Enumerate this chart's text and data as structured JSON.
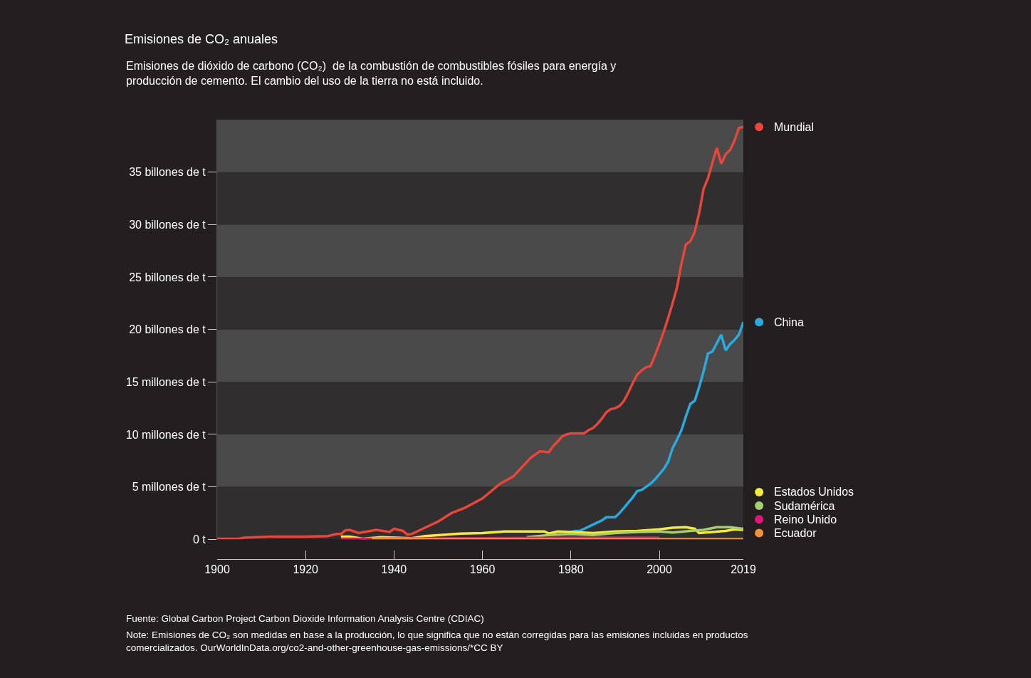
{
  "chart_data": {
    "type": "line",
    "title": "Emisiones de CO₂ anuales",
    "subtitle": "Emisiones de dióxido de carbono (CO₂)  de la combustión de combustibles fósiles para energía y producción de cemento. El cambio del uso de la tierra no está incluido.",
    "xlim": [
      1900,
      2019
    ],
    "xticks": [
      1900,
      1920,
      1940,
      1960,
      1980,
      2000,
      2019
    ],
    "ylim": [
      0,
      40
    ],
    "yticks": [
      {
        "value": 0,
        "label": "0 t"
      },
      {
        "value": 5,
        "label": "5 millones de t"
      },
      {
        "value": 10,
        "label": "10 millones de t"
      },
      {
        "value": 15,
        "label": "15 millones de t"
      },
      {
        "value": 20,
        "label": "20 billones de t"
      },
      {
        "value": 25,
        "label": "25 billones de t"
      },
      {
        "value": 30,
        "label": "30 billones de t"
      },
      {
        "value": 35,
        "label": "35 billones de t"
      }
    ],
    "grid": false,
    "legend": "right",
    "marker": "none",
    "line_style": "solid",
    "series": [
      {
        "name": "Mundial",
        "color": "#e8463b",
        "x": [
          1900,
          1905,
          1906,
          1912,
          1920,
          1925,
          1927,
          1928,
          1929,
          1930,
          1932,
          1934,
          1936,
          1939,
          1940,
          1942,
          1943,
          1944,
          1946,
          1950,
          1953,
          1956,
          1960,
          1964,
          1967,
          1971,
          1973,
          1975,
          1976,
          1977,
          1978,
          1979,
          1980,
          1983,
          1984,
          1985,
          1986,
          1987,
          1988,
          1989,
          1990,
          1991,
          1992,
          1993,
          1994,
          1995,
          1996,
          1997,
          1998,
          1999,
          2000,
          2001,
          2002,
          2003,
          2004,
          2005,
          2006,
          2007,
          2008,
          2009,
          2010,
          2011,
          2012,
          2013,
          2014,
          2015,
          2016,
          2017,
          2018,
          2019
        ],
        "values": [
          0.05,
          0.05,
          0.15,
          0.25,
          0.25,
          0.3,
          0.5,
          0.5,
          0.85,
          0.9,
          0.6,
          0.75,
          0.9,
          0.7,
          1.0,
          0.8,
          0.45,
          0.5,
          0.9,
          1.7,
          2.5,
          3.0,
          3.9,
          5.3,
          6.0,
          7.8,
          8.4,
          8.3,
          8.9,
          9.3,
          9.8,
          10.0,
          10.1,
          10.1,
          10.4,
          10.6,
          11.0,
          11.5,
          12.1,
          12.4,
          12.5,
          12.7,
          13.2,
          14.0,
          14.9,
          15.7,
          16.1,
          16.4,
          16.5,
          17.5,
          18.6,
          19.8,
          21.1,
          22.5,
          24.0,
          26.3,
          28.1,
          28.4,
          29.3,
          31.1,
          33.4,
          34.4,
          35.9,
          37.3,
          35.8,
          36.7,
          37.1,
          38.0,
          39.2,
          39.3
        ]
      },
      {
        "name": "China",
        "color": "#29abe2",
        "x": [
          1980,
          1981,
          1982,
          1983,
          1984,
          1985,
          1986,
          1987,
          1988,
          1989,
          1990,
          1991,
          1992,
          1993,
          1994,
          1995,
          1996,
          1997,
          1998,
          1999,
          2000,
          2001,
          2002,
          2003,
          2004,
          2005,
          2006,
          2007,
          2008,
          2009,
          2010,
          2011,
          2012,
          2013,
          2014,
          2015,
          2016,
          2017,
          2018,
          2019
        ],
        "values": [
          0.7,
          0.8,
          0.8,
          1.0,
          1.2,
          1.4,
          1.6,
          1.8,
          2.1,
          2.1,
          2.1,
          2.5,
          3.0,
          3.5,
          4.0,
          4.6,
          4.7,
          5.0,
          5.3,
          5.7,
          6.2,
          6.7,
          7.4,
          8.7,
          9.5,
          10.4,
          11.7,
          12.9,
          13.2,
          14.5,
          16.0,
          17.7,
          17.9,
          18.7,
          19.5,
          18.0,
          18.6,
          19.0,
          19.5,
          20.7
        ]
      },
      {
        "name": "Estados Unidos",
        "color": "#f5eb3b",
        "x": [
          1928,
          1930,
          1933,
          1937,
          1944,
          1947,
          1955,
          1960,
          1965,
          1974,
          1975,
          1977,
          1980,
          1985,
          1990,
          1995,
          2000,
          2003,
          2006,
          2008,
          2009,
          2012,
          2015,
          2017,
          2019
        ],
        "values": [
          0.25,
          0.25,
          0.05,
          0.2,
          0.1,
          0.3,
          0.55,
          0.6,
          0.75,
          0.75,
          0.55,
          0.75,
          0.7,
          0.6,
          0.75,
          0.8,
          0.95,
          1.1,
          1.15,
          1.0,
          0.6,
          0.7,
          0.8,
          0.95,
          0.9
        ]
      },
      {
        "name": "Sudamérica",
        "color": "#a5cf6e",
        "x": [
          1970,
          1975,
          1980,
          1985,
          1990,
          1995,
          2000,
          2003,
          2007,
          2010,
          2013,
          2016,
          2019
        ],
        "values": [
          0.2,
          0.4,
          0.5,
          0.4,
          0.6,
          0.7,
          0.75,
          0.65,
          0.8,
          0.9,
          1.15,
          1.15,
          1.0
        ]
      },
      {
        "name": "Reino Unido",
        "color": "#e8127d",
        "x": [
          1928,
          1935,
          1960,
          1980,
          2000
        ],
        "values": [
          0.05,
          0.05,
          0.1,
          0.15,
          0.15
        ]
      },
      {
        "name": "Ecuador",
        "color": "#f0923a",
        "x": [
          1935,
          1960,
          2000,
          2019
        ],
        "values": [
          0.02,
          0.02,
          0.02,
          0.02
        ]
      }
    ],
    "annotations": [
      "Fuente: Global Carbon Project Carbon Dioxide Information Analysis Centre (CDIAC)",
      "Note: Emisiones de CO₂ son medidas en base a la producción, lo que significa que no están corregidas para las emisiones incluidas en productos comercializados. OurWorldInData.org/co2-and-other-greenhouse-gas-emissions/*CC BY"
    ]
  }
}
